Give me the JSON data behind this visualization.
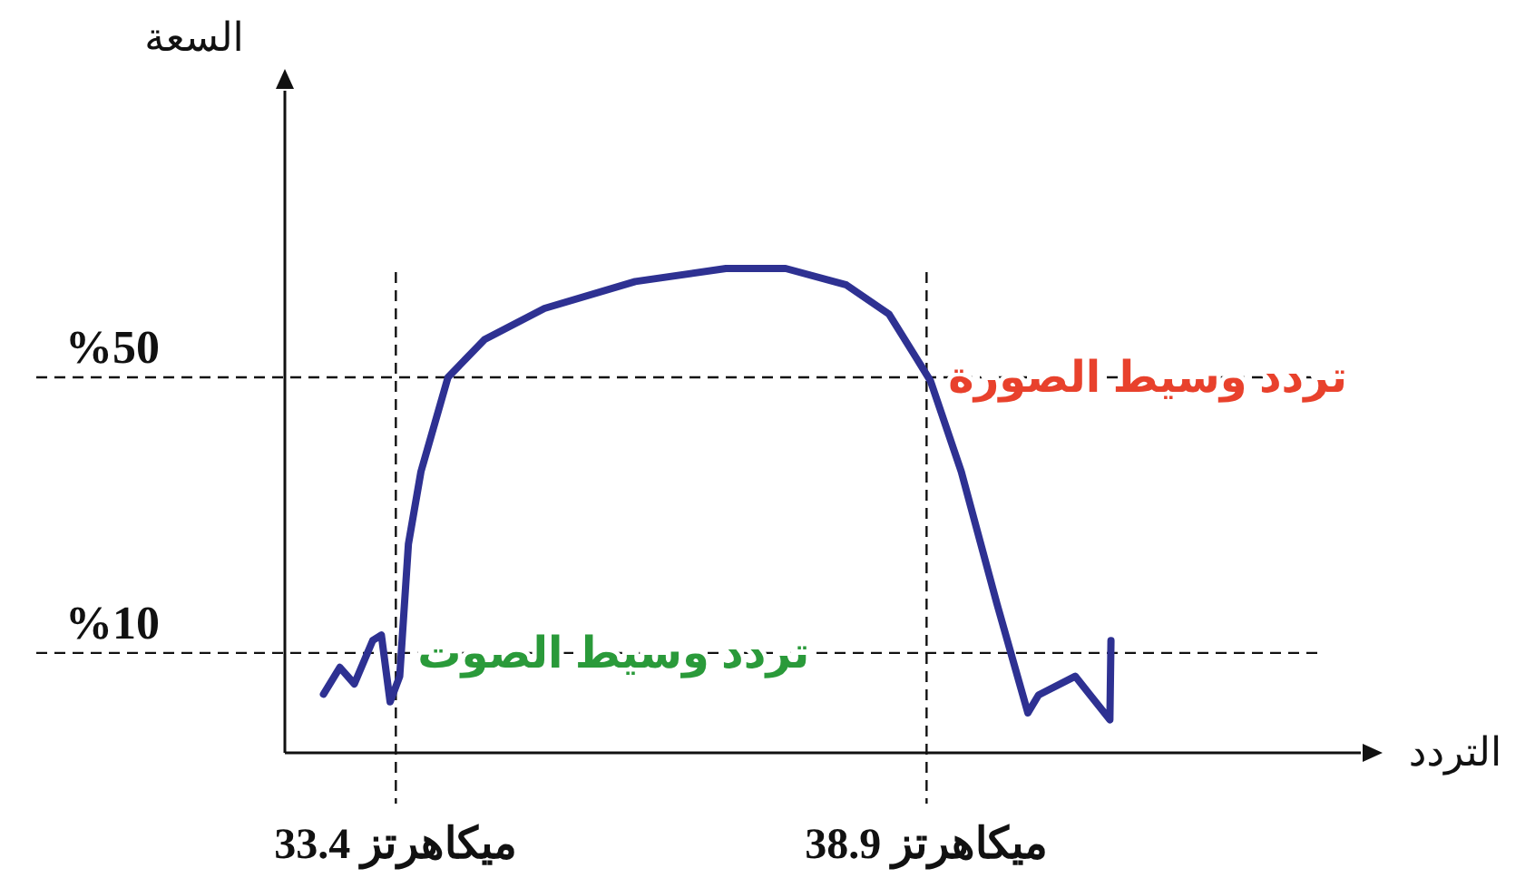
{
  "chart_data": {
    "type": "line",
    "xlabel": "التردد",
    "ylabel": "السعة",
    "x": [
      32.65,
      32.82,
      32.97,
      33.16,
      33.25,
      33.34,
      33.44,
      33.53,
      33.66,
      33.94,
      34.32,
      34.94,
      35.88,
      36.82,
      37.44,
      38.07,
      38.51,
      38.79,
      38.94,
      39.26,
      39.63,
      39.95,
      40.06,
      40.44,
      40.8,
      40.81
    ],
    "series": [
      {
        "color": "#2e3192",
        "values": [
          4,
          7.9,
          5.5,
          11.8,
          12.6,
          2.9,
          6.6,
          25.8,
          36.3,
          50,
          55.5,
          60,
          63.9,
          65.8,
          65.8,
          63.4,
          59.2,
          52.9,
          49.5,
          36.3,
          17.1,
          1.3,
          3.9,
          6.6,
          0.3,
          11.8
        ]
      }
    ],
    "xlim": [
      32.25,
      43.4
    ],
    "ylim": [
      -4.5,
      91.6
    ],
    "xticks": [
      {
        "value": 33.4,
        "label": "33.4 ميكاهرتز"
      },
      {
        "value": 38.9,
        "label": "38.9 ميكاهرتز"
      }
    ],
    "yticks": [
      {
        "value": 10,
        "label": "%10"
      },
      {
        "value": 50,
        "label": "%50"
      }
    ],
    "ref_lines": [
      {
        "axis": "y",
        "value": 50,
        "line_style": "dashed"
      },
      {
        "axis": "y",
        "value": 10,
        "line_style": "dashed"
      },
      {
        "axis": "x",
        "value": 33.4,
        "line_style": "dashed"
      },
      {
        "axis": "x",
        "value": 38.9,
        "line_style": "dashed"
      }
    ],
    "annotations": [
      {
        "text": "تردد وسيط الصورة",
        "x": 38.9,
        "y": 50
      },
      {
        "text": "تردد وسيط الصوت",
        "x": 33.4,
        "y": 10
      }
    ],
    "grid": false,
    "marker": "none",
    "line_style": "solid"
  }
}
